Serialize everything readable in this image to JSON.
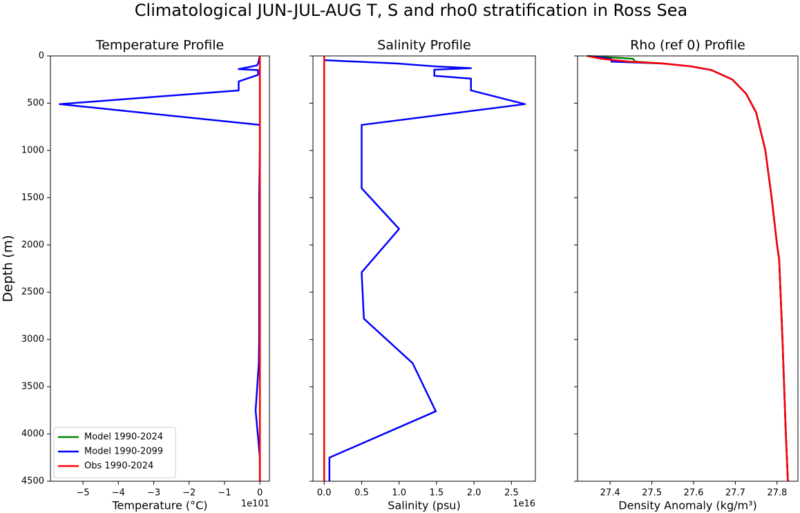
{
  "title": "Climatological JUN-JUL-AUG T, S and rho0 stratification in Ross Sea",
  "chart_data": [
    {
      "type": "line",
      "title": "Temperature Profile",
      "x_label": "Temperature (°C)",
      "y_label": "Depth (m)",
      "x_offset_label": "1e101",
      "xlim": [
        -5.92,
        0.27
      ],
      "xticks": [
        {
          "value": -5,
          "label": "−5"
        },
        {
          "value": -4,
          "label": "−4"
        },
        {
          "value": -3,
          "label": "−3"
        },
        {
          "value": -2,
          "label": "−2"
        },
        {
          "value": -1,
          "label": "−1"
        },
        0
      ],
      "ylim": [
        4500,
        0
      ],
      "yticks": [
        0,
        500,
        1000,
        1500,
        2000,
        2500,
        3000,
        3500,
        4000,
        4500
      ],
      "legend": "lower left",
      "y": [
        0,
        80,
        100,
        140,
        150,
        200,
        270,
        365,
        510,
        730,
        1000,
        1500,
        2000,
        2500,
        3000,
        3250,
        3750,
        4250,
        4500
      ],
      "series": [
        {
          "name": "Model 1990-2024",
          "color": "#008000",
          "values": [
            0,
            0,
            0,
            0,
            0,
            0,
            0,
            0,
            0,
            0,
            0,
            0,
            0,
            0,
            0,
            0,
            0,
            0,
            0
          ]
        },
        {
          "name": "Model 1990-2099",
          "color": "#0000ff",
          "values": [
            0,
            -0.05,
            -0.08,
            -0.6,
            -0.05,
            -0.05,
            -0.6,
            -0.6,
            -5.66,
            0,
            0,
            -0.02,
            -0.02,
            -0.02,
            -0.02,
            -0.03,
            -0.12,
            0,
            0
          ]
        },
        {
          "name": "Obs 1990-2024",
          "color": "#ff0000",
          "values": [
            0,
            0,
            0,
            0,
            0,
            0,
            0,
            0,
            0,
            0,
            0,
            0,
            0,
            0,
            0,
            0,
            0,
            0,
            0
          ]
        }
      ]
    },
    {
      "type": "line",
      "title": "Salinity Profile",
      "x_label": "Salinity (psu)",
      "x_offset_label": "1e16",
      "xlim": [
        -0.15,
        2.82
      ],
      "xticks": [
        {
          "value": 0,
          "label": "0.0"
        },
        0.5,
        {
          "value": 1,
          "label": "1.0"
        },
        1.5,
        {
          "value": 2,
          "label": "2.0"
        },
        2.5
      ],
      "ylim": [
        4500,
        0
      ],
      "yticks": [
        0,
        500,
        1000,
        1500,
        2000,
        2500,
        3000,
        3500,
        4000,
        4500
      ],
      "y": [
        0,
        45,
        80,
        110,
        130,
        145,
        210,
        240,
        365,
        510,
        730,
        1400,
        1830,
        2290,
        2780,
        3250,
        3760,
        4250,
        4500
      ],
      "series": [
        {
          "name": "Model 1990-2024",
          "color": "#008000",
          "values": [
            0,
            0,
            0,
            0,
            0,
            0,
            0,
            0,
            0,
            0,
            0,
            0,
            0,
            0,
            0,
            0,
            0,
            0,
            0
          ]
        },
        {
          "name": "Model 1990-2099",
          "color": "#0000ff",
          "values": [
            0,
            0,
            0.98,
            1.47,
            1.96,
            1.47,
            1.47,
            1.96,
            1.96,
            2.68,
            0.5,
            0.5,
            1.0,
            0.5,
            0.53,
            1.18,
            1.49,
            0.07,
            0.07
          ]
        },
        {
          "name": "Obs 1990-2024",
          "color": "#ff0000",
          "values": [
            0,
            0,
            0,
            0,
            0,
            0,
            0,
            0,
            0,
            0,
            0,
            0,
            0,
            0,
            0,
            0,
            0,
            0,
            0
          ]
        }
      ]
    },
    {
      "type": "line",
      "title": "Rho (ref 0) Profile",
      "x_label": "Density Anomaly (kg/m³)",
      "xlim": [
        27.322,
        27.85
      ],
      "xticks": [
        27.4,
        27.5,
        27.6,
        27.7,
        27.8
      ],
      "ylim": [
        4500,
        0
      ],
      "yticks": [
        0,
        500,
        1000,
        1500,
        2000,
        2500,
        3000,
        3500,
        4000,
        4500
      ],
      "y": [
        0,
        30,
        60,
        80,
        110,
        150,
        250,
        400,
        600,
        1000,
        1500,
        2000,
        2150,
        3000,
        4000,
        4500
      ],
      "series": [
        {
          "name": "Model 1990-2024",
          "color": "#008000",
          "values": [
            27.345,
            27.455,
            27.46,
            27.527,
            27.593,
            27.643,
            27.693,
            27.726,
            27.75,
            27.772,
            27.787,
            27.8,
            27.805,
            27.813,
            27.821,
            27.826
          ]
        },
        {
          "name": "Model 1990-2099",
          "color": "#0000ff",
          "values": [
            27.345,
            27.402,
            27.403,
            27.527,
            27.593,
            27.643,
            27.693,
            27.726,
            27.75,
            27.772,
            27.787,
            27.8,
            27.805,
            27.813,
            27.821,
            27.826
          ]
        },
        {
          "name": "Obs 1990-2024",
          "color": "#ff0000",
          "values": [
            27.345,
            27.379,
            27.445,
            27.527,
            27.593,
            27.643,
            27.693,
            27.726,
            27.75,
            27.772,
            27.787,
            27.8,
            27.805,
            27.813,
            27.821,
            27.826
          ]
        }
      ]
    }
  ]
}
